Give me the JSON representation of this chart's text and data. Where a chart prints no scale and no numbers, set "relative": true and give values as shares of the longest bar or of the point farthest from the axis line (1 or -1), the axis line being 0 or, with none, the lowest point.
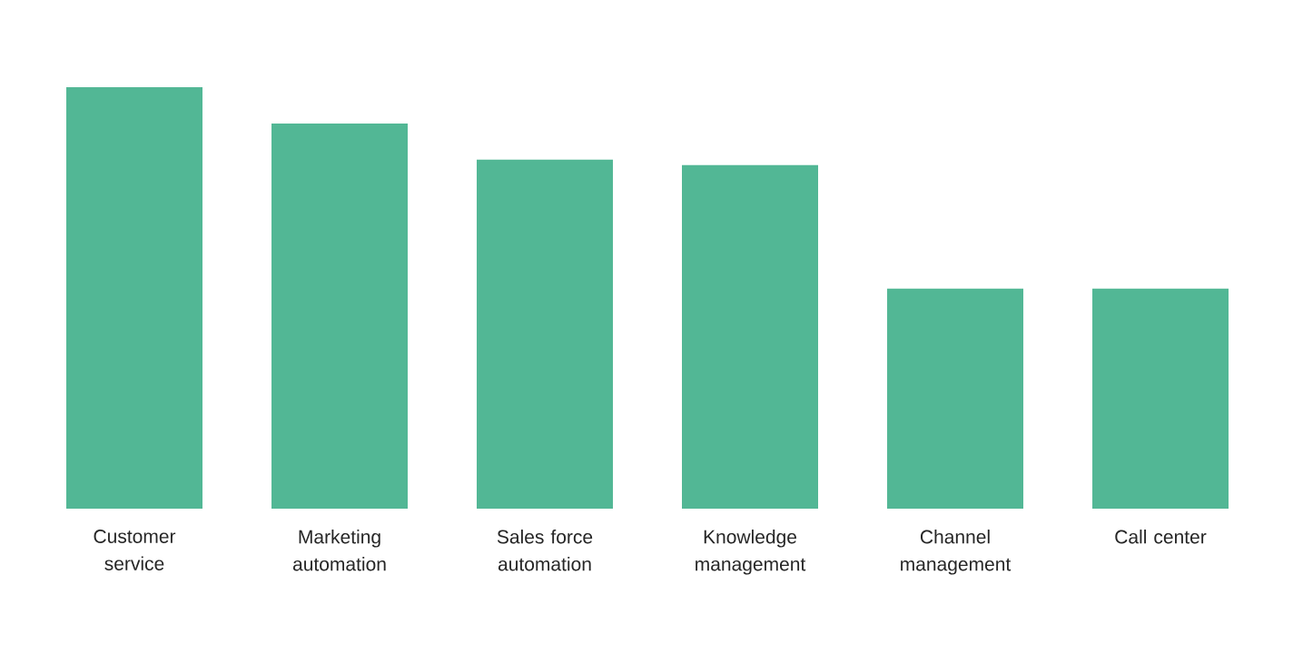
{
  "chart_data": {
    "type": "bar",
    "relative": true,
    "color": "#52b795",
    "categories": [
      "Customer service",
      "Marketing automation",
      "Sales force automation",
      "Knowledge management",
      "Channel management",
      "Call center"
    ],
    "values": [
      1,
      0.914,
      0.828,
      0.815,
      0.522,
      0.522
    ]
  }
}
